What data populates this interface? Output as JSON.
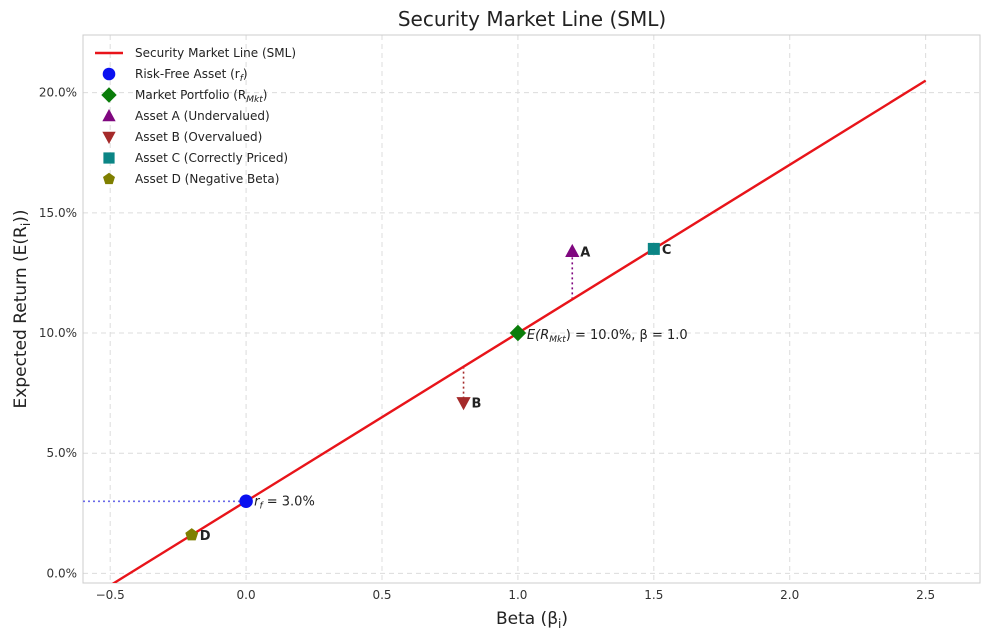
{
  "chart_data": {
    "type": "line",
    "title": "Security Market Line (SML)",
    "xlabel": "Beta (β",
    "xlabel_sub": "i",
    "ylabel": "Expected Return (E(R",
    "ylabel_sub": "i",
    "xlim": [
      -0.6,
      2.7
    ],
    "ylim": [
      -0.4,
      22.4
    ],
    "xticks": [
      -0.5,
      0.0,
      0.5,
      1.0,
      1.5,
      2.0,
      2.5
    ],
    "xtick_labels": [
      "−0.5",
      "0.0",
      "0.5",
      "1.0",
      "1.5",
      "2.0",
      "2.5"
    ],
    "yticks": [
      0,
      5,
      10,
      15,
      20
    ],
    "ytick_labels": [
      "0.0%",
      "5.0%",
      "10.0%",
      "15.0%",
      "20.0%"
    ],
    "grid": true,
    "legend_position": "top-left",
    "risk_free_rate": 3.0,
    "market_return": 10.0,
    "series": [
      {
        "name": "Security Market Line (SML)",
        "kind": "line",
        "color": "#e8141a",
        "x": [
          -0.5,
          2.5
        ],
        "y": [
          -0.5,
          20.5
        ]
      }
    ],
    "points": [
      {
        "key": "rf",
        "name": "Risk-Free Asset (r",
        "name_sub": "f",
        "marker": "circle",
        "color": "#0a10f0",
        "x": 0.0,
        "y": 3.0
      },
      {
        "key": "mkt",
        "name": "Market Portfolio (R",
        "name_sub": "Mkt",
        "marker": "diamond",
        "color": "#0a7d0a",
        "x": 1.0,
        "y": 10.0
      },
      {
        "key": "a",
        "name": "Asset A (Undervalued)",
        "marker": "triangle-up",
        "color": "#7f077f",
        "x": 1.2,
        "y": 13.4,
        "label": "A"
      },
      {
        "key": "b",
        "name": "Asset B (Overvalued)",
        "marker": "triangle-down",
        "color": "#a52a2a",
        "x": 0.8,
        "y": 7.1,
        "label": "B"
      },
      {
        "key": "c",
        "name": "Asset C (Correctly Priced)",
        "marker": "square",
        "color": "#0b8585",
        "x": 1.5,
        "y": 13.5,
        "label": "C"
      },
      {
        "key": "d",
        "name": "Asset D (Negative Beta)",
        "marker": "pentagon",
        "color": "#7f7f00",
        "x": -0.2,
        "y": 1.6,
        "label": "D"
      }
    ],
    "annotations": {
      "rf_text": "r",
      "rf_sub": "f",
      "rf_value": " = 3.0%",
      "mkt_text": "E(R",
      "mkt_sub": "Mkt",
      "mkt_value": ") = 10.0%, β = 1.0"
    },
    "guides": [
      {
        "kind": "horizontal",
        "color": "#6a6ae8",
        "x_from": -0.6,
        "x_to": 0.0,
        "y": 3.0
      },
      {
        "kind": "vertical",
        "color": "#7f077f",
        "x": 1.2,
        "y_from": 11.4,
        "y_to": 13.4
      },
      {
        "kind": "vertical",
        "color": "#a52a2a",
        "x": 0.8,
        "y_from": 8.6,
        "y_to": 7.1
      }
    ]
  }
}
